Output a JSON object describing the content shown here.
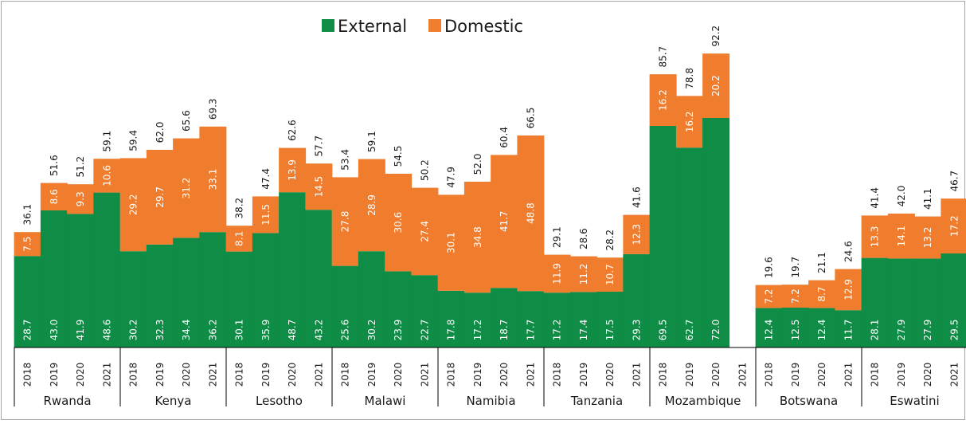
{
  "colors": {
    "external": "#0f8c45",
    "domestic": "#ef7d2d",
    "axis": "#000000",
    "frame": "#a6a6a6"
  },
  "legend": {
    "external": "External",
    "domestic": "Domestic"
  },
  "chart_data": {
    "type": "bar",
    "stacked": true,
    "title": "",
    "xlabel": "",
    "ylabel": "",
    "ylim": [
      0,
      100
    ],
    "grid": false,
    "legend_position": "top-center",
    "years": [
      "2018",
      "2019",
      "2020",
      "2021"
    ],
    "series": [
      {
        "name": "External",
        "key": "external"
      },
      {
        "name": "Domestic",
        "key": "domestic"
      }
    ],
    "groups": [
      {
        "country": "Rwanda",
        "bars": [
          {
            "year": "2018",
            "external": 28.7,
            "domestic": 7.5,
            "total": "36.1"
          },
          {
            "year": "2019",
            "external": 43.0,
            "domestic": 8.6,
            "total": "51.6"
          },
          {
            "year": "2020",
            "external": 41.9,
            "domestic": 9.3,
            "total": "51.2"
          },
          {
            "year": "2021",
            "external": 48.6,
            "domestic": 10.6,
            "total": "59.1"
          }
        ]
      },
      {
        "country": "Kenya",
        "bars": [
          {
            "year": "2018",
            "external": 30.2,
            "domestic": 29.2,
            "total": "59.4"
          },
          {
            "year": "2019",
            "external": 32.3,
            "domestic": 29.7,
            "total": "62.0"
          },
          {
            "year": "2020",
            "external": 34.4,
            "domestic": 31.2,
            "total": "65.6"
          },
          {
            "year": "2021",
            "external": 36.2,
            "domestic": 33.1,
            "total": "69.3"
          }
        ]
      },
      {
        "country": "Lesotho",
        "bars": [
          {
            "year": "2018",
            "external": 30.1,
            "domestic": 8.1,
            "total": "38.2"
          },
          {
            "year": "2019",
            "external": 35.9,
            "domestic": 11.5,
            "total": "47.4"
          },
          {
            "year": "2020",
            "external": 48.7,
            "domestic": 13.9,
            "total": "62.6"
          },
          {
            "year": "2021",
            "external": 43.2,
            "domestic": 14.5,
            "total": "57.7"
          }
        ]
      },
      {
        "country": "Malawi",
        "bars": [
          {
            "year": "2018",
            "external": 25.6,
            "domestic": 27.8,
            "total": "53.4"
          },
          {
            "year": "2019",
            "external": 30.2,
            "domestic": 28.9,
            "total": "59.1"
          },
          {
            "year": "2020",
            "external": 23.9,
            "domestic": 30.6,
            "total": "54.5"
          },
          {
            "year": "2021",
            "external": 22.7,
            "domestic": 27.4,
            "total": "50.2"
          }
        ]
      },
      {
        "country": "Namibia",
        "bars": [
          {
            "year": "2018",
            "external": 17.8,
            "domestic": 30.1,
            "total": "47.9"
          },
          {
            "year": "2019",
            "external": 17.2,
            "domestic": 34.8,
            "total": "52.0"
          },
          {
            "year": "2020",
            "external": 18.7,
            "domestic": 41.7,
            "total": "60.4"
          },
          {
            "year": "2021",
            "external": 17.7,
            "domestic": 48.8,
            "total": "66.5"
          }
        ]
      },
      {
        "country": "Tanzania",
        "bars": [
          {
            "year": "2018",
            "external": 17.2,
            "domestic": 11.9,
            "total": "29.1"
          },
          {
            "year": "2019",
            "external": 17.4,
            "domestic": 11.2,
            "total": "28.6"
          },
          {
            "year": "2020",
            "external": 17.5,
            "domestic": 10.7,
            "total": "28.2"
          },
          {
            "year": "2021",
            "external": 29.3,
            "domestic": 12.3,
            "total": "41.6"
          }
        ]
      },
      {
        "country": "Mozambique",
        "bars": [
          {
            "year": "2018",
            "external": 69.5,
            "domestic": 16.2,
            "total": "85.7"
          },
          {
            "year": "2019",
            "external": 62.7,
            "domestic": 16.2,
            "total": "78.8"
          },
          {
            "year": "2020",
            "external": 72.0,
            "domestic": 20.2,
            "total": "92.2"
          },
          {
            "year": "2021",
            "external": null,
            "domestic": null,
            "total": null
          }
        ]
      },
      {
        "country": "Botswana",
        "bars": [
          {
            "year": "2018",
            "external": 12.4,
            "domestic": 7.2,
            "total": "19.6"
          },
          {
            "year": "2019",
            "external": 12.5,
            "domestic": 7.2,
            "total": "19.7"
          },
          {
            "year": "2020",
            "external": 12.4,
            "domestic": 8.7,
            "total": "21.1"
          },
          {
            "year": "2021",
            "external": 11.7,
            "domestic": 12.9,
            "total": "24.6"
          }
        ]
      },
      {
        "country": "Eswatini",
        "bars": [
          {
            "year": "2018",
            "external": 28.1,
            "domestic": 13.3,
            "total": "41.4"
          },
          {
            "year": "2019",
            "external": 27.9,
            "domestic": 14.1,
            "total": "42.0"
          },
          {
            "year": "2020",
            "external": 27.9,
            "domestic": 13.2,
            "total": "41.1"
          },
          {
            "year": "2021",
            "external": 29.5,
            "domestic": 17.2,
            "total": "46.7"
          }
        ]
      }
    ]
  }
}
